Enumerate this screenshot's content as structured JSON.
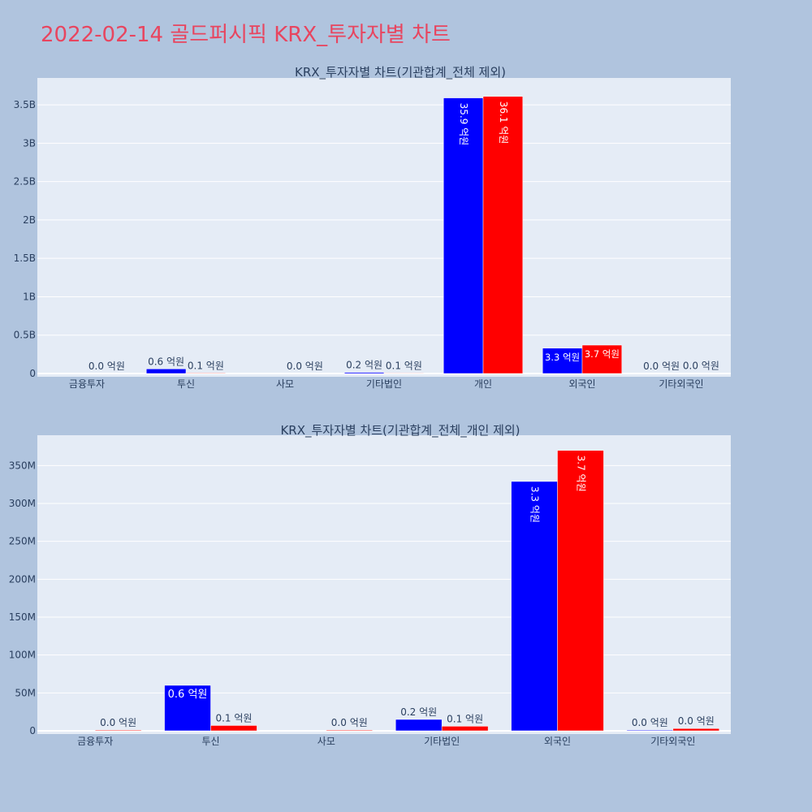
{
  "page_title": "2022-02-14 골드퍼시픽 KRX_투자자별 차트",
  "colors": {
    "buy": "#0000ff",
    "sell": "#ff0000",
    "plot_bg": "#e5ecf6",
    "page_bg": "#b0c4de",
    "title": "#e8455f",
    "text": "#2a3f5f"
  },
  "chart_data": [
    {
      "type": "bar",
      "title": "KRX_투자자별 차트(기관합계_전체 제외)",
      "categories": [
        "금융투자",
        "투신",
        "사모",
        "기타법인",
        "개인",
        "외국인",
        "기타외국인"
      ],
      "ylim": [
        0,
        3850000000
      ],
      "yticks": [
        0,
        500000000,
        1000000000,
        1500000000,
        2000000000,
        2500000000,
        3000000000,
        3500000000
      ],
      "ytick_labels": [
        "0",
        "0.5B",
        "1B",
        "1.5B",
        "2B",
        "2.5B",
        "3B",
        "3.5B"
      ],
      "grid": true,
      "series": [
        {
          "color": "#0000ff",
          "values": [
            0,
            60000000,
            0,
            15000000,
            3590000000,
            330000000,
            1000000
          ],
          "labels": [
            "",
            "0.6 억원",
            "",
            "0.2 억원",
            "35.9 억원",
            "3.3 억원",
            "0.0 억원"
          ]
        },
        {
          "color": "#ff0000",
          "values": [
            1000000,
            7000000,
            1000000,
            6000000,
            3610000000,
            370000000,
            3000000
          ],
          "labels": [
            "0.0 억원",
            "0.1 억원",
            "0.0 억원",
            "0.1 억원",
            "36.1 억원",
            "3.7 억원",
            "0.0 억원"
          ]
        }
      ]
    },
    {
      "type": "bar",
      "title": "KRX_투자자별 차트(기관합계_전체_개인 제외)",
      "categories": [
        "금융투자",
        "투신",
        "사모",
        "기타법인",
        "외국인",
        "기타외국인"
      ],
      "ylim": [
        0,
        390000000
      ],
      "yticks": [
        0,
        50000000,
        100000000,
        150000000,
        200000000,
        250000000,
        300000000,
        350000000
      ],
      "ytick_labels": [
        "0",
        "50M",
        "100M",
        "150M",
        "200M",
        "250M",
        "300M",
        "350M"
      ],
      "grid": true,
      "series": [
        {
          "color": "#0000ff",
          "values": [
            0,
            60000000,
            0,
            15000000,
            329000000,
            1000000
          ],
          "labels": [
            "",
            "0.6 억원",
            "",
            "0.2 억원",
            "3.3 억원",
            "0.0 억원"
          ]
        },
        {
          "color": "#ff0000",
          "values": [
            1000000,
            7000000,
            1000000,
            6000000,
            370000000,
            3000000
          ],
          "labels": [
            "0.0 억원",
            "0.1 억원",
            "0.0 억원",
            "0.1 억원",
            "3.7 억원",
            "0.0 억원"
          ]
        }
      ]
    }
  ]
}
